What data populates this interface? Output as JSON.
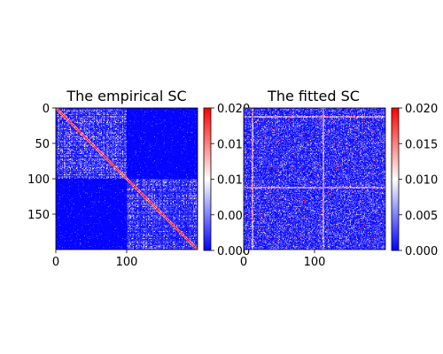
{
  "chart_data": [
    {
      "type": "heatmap",
      "title": "The empirical SC",
      "xlim": [
        0,
        200
      ],
      "ylim": [
        200,
        0
      ],
      "x_ticks": [
        0,
        100
      ],
      "y_ticks": [
        0,
        50,
        100,
        150
      ],
      "x_tick_labels": [
        "0",
        "100"
      ],
      "y_tick_labels": [
        "0",
        "50",
        "100",
        "150"
      ],
      "color_range": [
        0.0,
        0.02
      ],
      "colormap": "bwr",
      "grid": false,
      "colorbar": {
        "ticks": [
          0.0,
          0.005,
          0.01,
          0.015,
          0.02
        ],
        "tick_labels": [
          "0.000",
          "0.005",
          "0.010",
          "0.015",
          "0.020"
        ]
      },
      "structure": {
        "matrix_size": 200,
        "hemisphere_split": 100,
        "diagonal": "strong (red)",
        "within_hemisphere_blocks": "dense mid/low values",
        "between_hemisphere_blocks": "near zero (blue)"
      }
    },
    {
      "type": "heatmap",
      "title": "The fitted SC",
      "xlim": [
        0,
        200
      ],
      "ylim": [
        200,
        0
      ],
      "x_ticks": [
        0,
        100
      ],
      "x_tick_labels": [
        "0",
        "100"
      ],
      "color_range": [
        0.0,
        0.02
      ],
      "colormap": "bwr",
      "grid": false,
      "colorbar": {
        "ticks": [
          0.0,
          0.005,
          0.01,
          0.015,
          0.02
        ],
        "tick_labels": [
          "0.000",
          "0.005",
          "0.010",
          "0.015",
          "0.020"
        ]
      },
      "structure": {
        "matrix_size": 200,
        "hemisphere_split": 100,
        "background": "mostly low (blue)",
        "hot_rows_cols": [
          12,
          112
        ],
        "pattern": "sparse scattered high values"
      }
    }
  ],
  "colors": {
    "cmap_low": "#0000ff",
    "cmap_mid": "#ffffff",
    "cmap_high": "#ff0000"
  }
}
